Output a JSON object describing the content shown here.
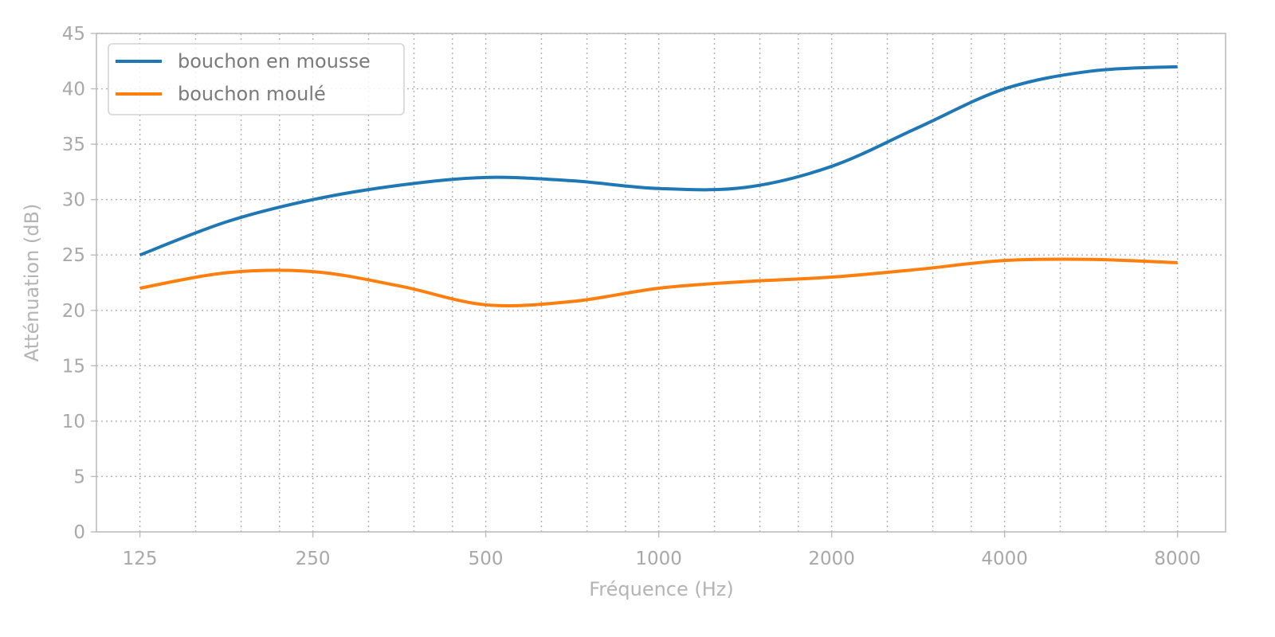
{
  "chart_data": {
    "type": "line",
    "title": "",
    "xlabel": "Fréquence (Hz)",
    "ylabel": "Atténuation (dB)",
    "x_scale": "log2",
    "xlim": [
      105,
      9700
    ],
    "ylim": [
      0,
      45
    ],
    "x_ticks": [
      125,
      250,
      500,
      1000,
      2000,
      4000,
      8000
    ],
    "x_tick_labels": [
      "125",
      "250",
      "500",
      "1000",
      "2000",
      "4000",
      "8000"
    ],
    "y_ticks": [
      0,
      5,
      10,
      15,
      20,
      25,
      30,
      35,
      40,
      45
    ],
    "y_tick_labels": [
      "0",
      "5",
      "10",
      "15",
      "20",
      "25",
      "30",
      "35",
      "40",
      "45"
    ],
    "grid": true,
    "legend_position": "top-left",
    "series": [
      {
        "name": "bouchon en mousse",
        "color": "#1f77b4",
        "x": [
          125,
          177,
          250,
          354,
          500,
          707,
          1000,
          1414,
          2000,
          2828,
          4000,
          5657,
          8000
        ],
        "values": [
          25,
          28,
          30,
          31.3,
          32,
          31.7,
          31,
          31.1,
          33,
          36.5,
          40,
          41.6,
          42
        ]
      },
      {
        "name": "bouchon moulé",
        "color": "#ff7f0e",
        "x": [
          125,
          177,
          250,
          354,
          500,
          707,
          1000,
          1414,
          2000,
          2828,
          4000,
          5657,
          8000
        ],
        "values": [
          22,
          23.4,
          23.5,
          22.2,
          20.5,
          20.8,
          22,
          22.6,
          23,
          23.7,
          24.5,
          24.6,
          24.3
        ]
      }
    ]
  }
}
